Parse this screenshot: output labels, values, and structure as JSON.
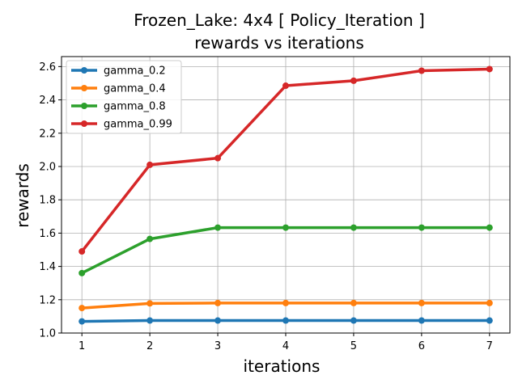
{
  "chart_data": {
    "type": "line",
    "title_line1": "Frozen_Lake: 4x4 [ Policy_Iteration ]",
    "title_line2": "rewards vs iterations",
    "xlabel": "iterations",
    "ylabel": "rewards",
    "x": [
      1,
      2,
      3,
      4,
      5,
      6,
      7
    ],
    "xlim": [
      0.7,
      7.3
    ],
    "ylim": [
      1.0,
      2.66
    ],
    "xticks": [
      1,
      2,
      3,
      4,
      5,
      6,
      7
    ],
    "yticks": [
      1.0,
      1.2,
      1.4,
      1.6,
      1.8,
      2.0,
      2.2,
      2.4,
      2.6
    ],
    "grid": true,
    "legend_position": "top-left",
    "series": [
      {
        "name": "gamma_0.2",
        "color": "#1f77b4",
        "values": [
          1.07,
          1.075,
          1.075,
          1.075,
          1.075,
          1.075,
          1.075
        ]
      },
      {
        "name": "gamma_0.4",
        "color": "#ff7f0e",
        "values": [
          1.15,
          1.178,
          1.18,
          1.18,
          1.18,
          1.18,
          1.18
        ]
      },
      {
        "name": "gamma_0.8",
        "color": "#2ca02c",
        "values": [
          1.36,
          1.565,
          1.633,
          1.633,
          1.633,
          1.633,
          1.633
        ]
      },
      {
        "name": "gamma_0.99",
        "color": "#d62728",
        "values": [
          1.49,
          2.01,
          2.05,
          2.485,
          2.515,
          2.575,
          2.585
        ]
      }
    ]
  }
}
